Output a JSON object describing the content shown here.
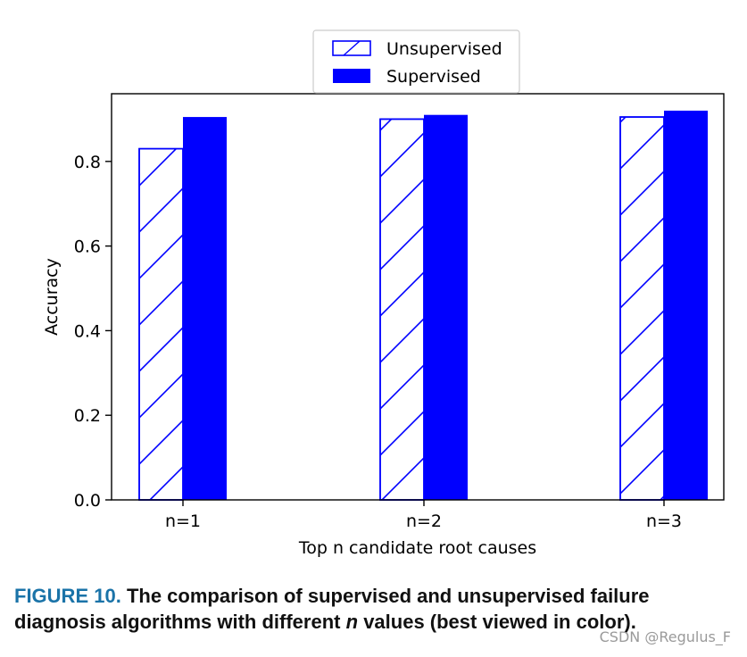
{
  "chart_data": {
    "type": "bar",
    "title": "",
    "xlabel": "Top n candidate root causes",
    "ylabel": "Accuracy",
    "categories": [
      "n=1",
      "n=2",
      "n=3"
    ],
    "ylim": [
      0,
      0.96
    ],
    "yticks": [
      "0.0",
      "0.2",
      "0.4",
      "0.6",
      "0.8"
    ],
    "grid": false,
    "legend_position": "top-center",
    "series": [
      {
        "name": "Unsupervised",
        "values": [
          0.83,
          0.9,
          0.905
        ],
        "style": "hatched",
        "color": "#0000ff"
      },
      {
        "name": "Supervised",
        "values": [
          0.905,
          0.91,
          0.92
        ],
        "style": "solid",
        "color": "#0000ff"
      }
    ]
  },
  "caption": {
    "label": "FIGURE 10.",
    "text_before_italic": "The comparison of supervised and unsupervised failure diagnosis algorithms with different",
    "italic": "n",
    "text_after_italic": "values (best viewed in color)."
  },
  "watermark": "CSDN @Regulus_F"
}
